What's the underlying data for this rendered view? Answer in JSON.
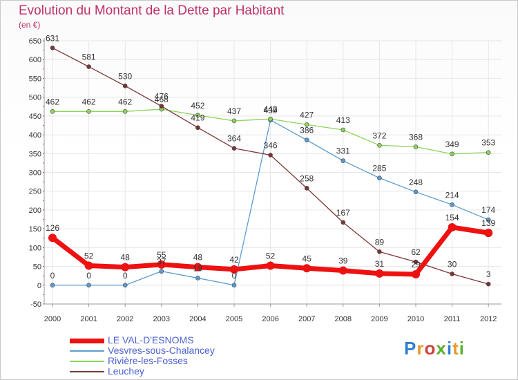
{
  "title": "Evolution du Montant de la Dette par Habitant",
  "subtitle": "(en €)",
  "logo": {
    "text": "Proxiti",
    "letters": [
      "P",
      "r",
      "o",
      "x",
      "i",
      "t",
      "i"
    ],
    "colors": [
      "#2f7fd0",
      "#e89a2a",
      "#d04040",
      "#5bb030",
      "#2f7fd0",
      "#e89a2a",
      "#5bb030"
    ]
  },
  "chart_data": {
    "type": "line",
    "title": "Evolution du Montant de la Dette par Habitant",
    "ylabel": "(en €)",
    "xlabel": "",
    "x": [
      "2000",
      "2001",
      "2002",
      "2003",
      "2004",
      "2005",
      "2006",
      "2007",
      "2008",
      "2009",
      "2010",
      "2011",
      "2012"
    ],
    "ylim": [
      -50,
      650
    ],
    "yticks": [
      -50,
      0,
      50,
      100,
      150,
      200,
      250,
      300,
      350,
      400,
      450,
      500,
      550,
      600,
      650
    ],
    "grid": true,
    "legend_placement": "bottom-left",
    "series": [
      {
        "name": "LE VAL-D'ESNOMS",
        "color": "#ee1111",
        "emphasis": true,
        "values": [
          126,
          52,
          48,
          55,
          48,
          42,
          52,
          45,
          39,
          31,
          29,
          154,
          139
        ],
        "labels": [
          "126",
          "52",
          "48",
          "55",
          "48",
          "42",
          "52",
          "45",
          "39",
          "31",
          "29",
          "154",
          "139"
        ]
      },
      {
        "name": "Vesvres-sous-Chalancey",
        "color": "#5b9bcf",
        "values": [
          0,
          0,
          0,
          37,
          19,
          0,
          439,
          386,
          331,
          285,
          248,
          214,
          174
        ],
        "labels": [
          "0",
          "0",
          "0",
          "37",
          "19",
          "0",
          "439",
          "386",
          "331",
          "285",
          "248",
          "214",
          "174"
        ]
      },
      {
        "name": "Rivière-les-Fosses",
        "color": "#8ed45b",
        "values": [
          462,
          462,
          462,
          468,
          452,
          437,
          442,
          427,
          413,
          372,
          368,
          349,
          353
        ],
        "labels": [
          "462",
          "462",
          "462",
          "468",
          "452",
          "437",
          "442",
          "427",
          "413",
          "372",
          "368",
          "349",
          "353"
        ]
      },
      {
        "name": "Leuchey",
        "color": "#7b3535",
        "values": [
          631,
          581,
          530,
          476,
          419,
          364,
          346,
          258,
          167,
          89,
          62,
          30,
          3
        ],
        "labels": [
          "631",
          "581",
          "530",
          "476",
          "419",
          "364",
          "346",
          "258",
          "167",
          "89",
          "62",
          "30",
          "3"
        ]
      }
    ]
  }
}
